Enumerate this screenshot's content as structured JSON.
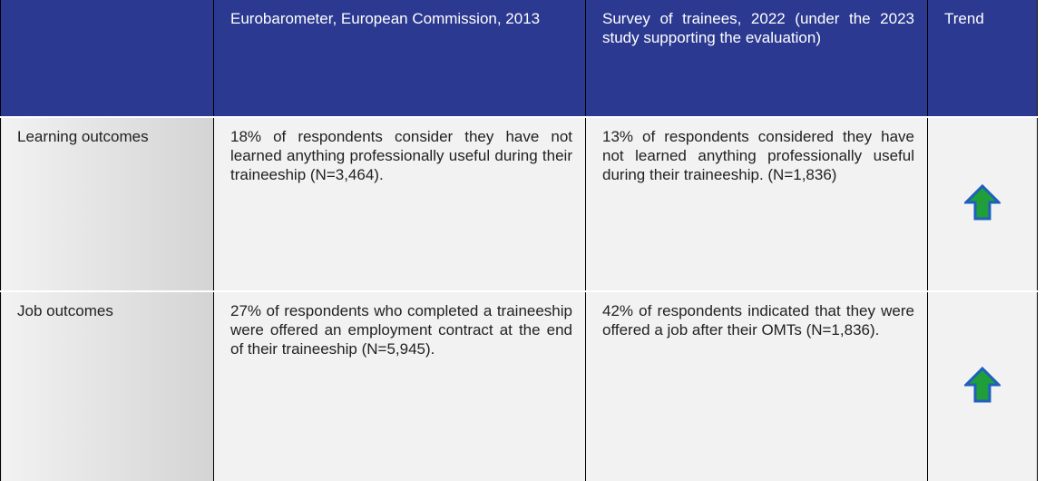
{
  "table": {
    "header": [
      "Eurobarometer, European Commission, 2013",
      "Survey of trainees, 2022 (under the 2023 study supporting the evaluation)",
      "Trend"
    ],
    "rows": [
      {
        "label": "Learning outcomes",
        "cells": [
          "18% of respondents consider they have not learned anything professionally useful during their traineeship (N=3,464).",
          "13% of respondents considered they have not learned anything professionally useful during their traineeship. (N=1,836)"
        ]
      },
      {
        "label": "Job outcomes",
        "cells": [
          "27% of respondents who completed a traineeship were offered an employment contract at the end of their traineeship (N=5,945).",
          "42% of respondents indicated that they were offered a job after their OMTs (N=1,836)."
        ]
      }
    ]
  }
}
